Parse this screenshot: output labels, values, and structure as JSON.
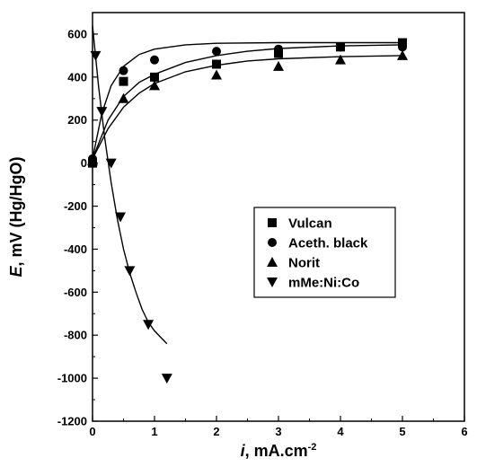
{
  "chart_data": {
    "type": "scatter",
    "xlabel": {
      "var": "i",
      "rest": ", mA.cm",
      "sup": "-2"
    },
    "ylabel": {
      "var": "E",
      "rest": ", mV (Hg/HgO)"
    },
    "xlim": [
      0,
      6
    ],
    "ylim": [
      -1200,
      700
    ],
    "x_ticks": [
      0,
      1,
      2,
      3,
      4,
      5,
      6
    ],
    "y_ticks": [
      -1200,
      -1000,
      -800,
      -600,
      -400,
      -200,
      0,
      200,
      400,
      600
    ],
    "legend_position": "center-right",
    "series": [
      {
        "name": "Vulcan",
        "marker": "square",
        "points": [
          [
            0,
            0
          ],
          [
            0.5,
            380
          ],
          [
            1,
            400
          ],
          [
            2,
            460
          ],
          [
            3,
            510
          ],
          [
            4,
            540
          ],
          [
            5,
            560
          ]
        ],
        "fit": [
          [
            0,
            20
          ],
          [
            0.25,
            200
          ],
          [
            0.5,
            310
          ],
          [
            0.75,
            375
          ],
          [
            1,
            413
          ],
          [
            1.5,
            468
          ],
          [
            2,
            500
          ],
          [
            2.5,
            520
          ],
          [
            3,
            533
          ],
          [
            4,
            545
          ],
          [
            5,
            550
          ]
        ]
      },
      {
        "name": "Aceth. black",
        "marker": "circle",
        "points": [
          [
            0,
            20
          ],
          [
            0.5,
            430
          ],
          [
            1,
            480
          ],
          [
            2,
            520
          ],
          [
            3,
            530
          ],
          [
            4,
            540
          ],
          [
            5,
            540
          ]
        ],
        "fit": [
          [
            0,
            20
          ],
          [
            0.15,
            230
          ],
          [
            0.3,
            360
          ],
          [
            0.5,
            450
          ],
          [
            0.75,
            505
          ],
          [
            1,
            530
          ],
          [
            1.5,
            550
          ],
          [
            2,
            557
          ],
          [
            3,
            560
          ],
          [
            5,
            560
          ]
        ]
      },
      {
        "name": "Norit",
        "marker": "triangle-up",
        "points": [
          [
            0,
            10
          ],
          [
            0.5,
            300
          ],
          [
            1,
            360
          ],
          [
            2,
            410
          ],
          [
            3,
            450
          ],
          [
            4,
            480
          ],
          [
            5,
            500
          ]
        ],
        "fit": [
          [
            0,
            20
          ],
          [
            0.25,
            160
          ],
          [
            0.5,
            260
          ],
          [
            0.75,
            325
          ],
          [
            1,
            370
          ],
          [
            1.5,
            425
          ],
          [
            2,
            455
          ],
          [
            2.5,
            475
          ],
          [
            3,
            485
          ],
          [
            4,
            495
          ],
          [
            5,
            500
          ]
        ]
      },
      {
        "name": "mMe:Ni:Co",
        "marker": "triangle-down",
        "points": [
          [
            0.05,
            500
          ],
          [
            0.15,
            240
          ],
          [
            0.3,
            0
          ],
          [
            0.45,
            -250
          ],
          [
            0.6,
            -500
          ],
          [
            0.9,
            -750
          ],
          [
            1.2,
            -1000
          ]
        ],
        "fit": [
          [
            0,
            640
          ],
          [
            0.1,
            350
          ],
          [
            0.2,
            110
          ],
          [
            0.3,
            -90
          ],
          [
            0.4,
            -260
          ],
          [
            0.5,
            -400
          ],
          [
            0.6,
            -510
          ],
          [
            0.7,
            -600
          ],
          [
            0.8,
            -680
          ],
          [
            0.9,
            -740
          ],
          [
            1.0,
            -780
          ],
          [
            1.1,
            -810
          ],
          [
            1.2,
            -840
          ]
        ]
      }
    ]
  }
}
